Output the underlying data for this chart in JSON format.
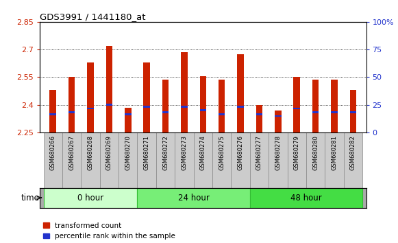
{
  "title": "GDS3991 / 1441180_at",
  "samples": [
    "GSM680266",
    "GSM680267",
    "GSM680268",
    "GSM680269",
    "GSM680270",
    "GSM680271",
    "GSM680272",
    "GSM680273",
    "GSM680274",
    "GSM680275",
    "GSM680276",
    "GSM680277",
    "GSM680278",
    "GSM680279",
    "GSM680280",
    "GSM680281",
    "GSM680282"
  ],
  "transformed_count": [
    2.48,
    2.55,
    2.63,
    2.72,
    2.385,
    2.63,
    2.535,
    2.685,
    2.555,
    2.535,
    2.675,
    2.4,
    2.37,
    2.55,
    2.535,
    2.535,
    2.48
  ],
  "percentile_pos": [
    2.345,
    2.355,
    2.375,
    2.395,
    2.345,
    2.385,
    2.355,
    2.385,
    2.365,
    2.345,
    2.385,
    2.345,
    2.335,
    2.375,
    2.355,
    2.355,
    2.355
  ],
  "percentile_size": 0.01,
  "y_min": 2.25,
  "y_max": 2.85,
  "y_ticks": [
    2.25,
    2.4,
    2.55,
    2.7,
    2.85
  ],
  "y_ticks_labels": [
    "2.25",
    "2.4",
    "2.55",
    "2.7",
    "2.85"
  ],
  "right_y_ticks": [
    0,
    25,
    50,
    75,
    100
  ],
  "right_y_ticks_labels": [
    "0",
    "25",
    "50",
    "75",
    "100%"
  ],
  "bar_color": "#CC2200",
  "blue_color": "#2233CC",
  "grid_color": "#000000",
  "groups": [
    {
      "label": "0 hour",
      "start": 0,
      "end": 5,
      "color": "#CCFFCC",
      "edge_color": "#33BB33"
    },
    {
      "label": "24 hour",
      "start": 5,
      "end": 11,
      "color": "#77EE77",
      "edge_color": "#33BB33"
    },
    {
      "label": "48 hour",
      "start": 11,
      "end": 17,
      "color": "#44DD44",
      "edge_color": "#33BB33"
    }
  ],
  "xlabel": "time",
  "legend": [
    "transformed count",
    "percentile rank within the sample"
  ],
  "bg_color": "#FFFFFF",
  "plot_bg": "#FFFFFF",
  "tick_label_color_left": "#CC2200",
  "tick_label_color_right": "#2233CC",
  "bar_width": 0.35,
  "sample_box_color": "#CCCCCC",
  "sample_box_edge": "#888888"
}
